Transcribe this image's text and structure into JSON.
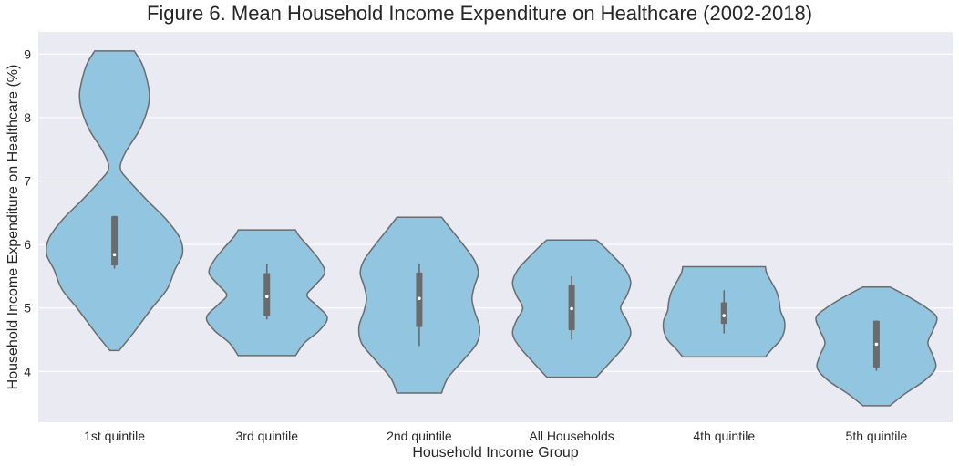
{
  "chart_data": {
    "type": "violin",
    "title": "Figure 6. Mean Household Income Expenditure on Healthcare (2002-2018)",
    "xlabel": "Household Income Group",
    "ylabel": "Household Income Expenditure on Healthcare (%)",
    "ylim": [
      3.2,
      9.35
    ],
    "yticks": [
      4,
      5,
      6,
      7,
      8,
      9
    ],
    "grid": true,
    "categories": [
      "1st quintile",
      "3rd quintile",
      "2nd quintile",
      "All Households",
      "4th quintile",
      "5th quintile"
    ],
    "series": [
      {
        "category": "1st quintile",
        "min": 5.62,
        "q1": 5.67,
        "median": 5.84,
        "q3": 6.45,
        "max": 6.45,
        "density": [
          [
            4.33,
            0.44
          ],
          [
            4.6,
            0.33
          ],
          [
            5.0,
            0.18
          ],
          [
            5.3,
            0.06
          ],
          [
            5.6,
            0.0
          ],
          [
            5.85,
            -0.06
          ],
          [
            6.1,
            -0.04
          ],
          [
            6.4,
            0.07
          ],
          [
            6.7,
            0.22
          ],
          [
            7.0,
            0.36
          ],
          [
            7.2,
            0.43
          ],
          [
            7.45,
            0.39
          ],
          [
            7.8,
            0.28
          ],
          [
            8.1,
            0.22
          ],
          [
            8.35,
            0.2
          ],
          [
            8.6,
            0.22
          ],
          [
            8.85,
            0.26
          ],
          [
            9.05,
            0.32
          ]
        ]
      },
      {
        "category": "3rd quintile",
        "min": 4.82,
        "q1": 4.87,
        "median": 5.18,
        "q3": 5.55,
        "max": 5.7,
        "density": [
          [
            4.25,
            0.25
          ],
          [
            4.45,
            0.18
          ],
          [
            4.65,
            0.06
          ],
          [
            4.85,
            0.0
          ],
          [
            5.05,
            0.09
          ],
          [
            5.2,
            0.16
          ],
          [
            5.35,
            0.1
          ],
          [
            5.55,
            0.02
          ],
          [
            5.75,
            0.06
          ],
          [
            5.95,
            0.14
          ],
          [
            6.13,
            0.22
          ],
          [
            6.23,
            0.25
          ]
        ]
      },
      {
        "category": "2nd quintile",
        "min": 4.4,
        "q1": 4.7,
        "median": 5.15,
        "q3": 5.56,
        "max": 5.7,
        "density": [
          [
            3.66,
            0.3
          ],
          [
            3.9,
            0.25
          ],
          [
            4.2,
            0.12
          ],
          [
            4.45,
            0.02
          ],
          [
            4.7,
            0.0
          ],
          [
            4.95,
            0.04
          ],
          [
            5.15,
            0.06
          ],
          [
            5.35,
            0.04
          ],
          [
            5.55,
            0.01
          ],
          [
            5.75,
            0.04
          ],
          [
            6.0,
            0.13
          ],
          [
            6.25,
            0.23
          ],
          [
            6.43,
            0.3
          ]
        ]
      },
      {
        "category": "All Households",
        "min": 4.5,
        "q1": 4.65,
        "median": 4.99,
        "q3": 5.37,
        "max": 5.5,
        "density": [
          [
            3.91,
            0.28
          ],
          [
            4.15,
            0.17
          ],
          [
            4.4,
            0.06
          ],
          [
            4.6,
            0.01
          ],
          [
            4.8,
            0.04
          ],
          [
            5.0,
            0.09
          ],
          [
            5.2,
            0.04
          ],
          [
            5.4,
            0.01
          ],
          [
            5.6,
            0.05
          ],
          [
            5.8,
            0.14
          ],
          [
            6.0,
            0.24
          ],
          [
            6.07,
            0.28
          ]
        ]
      },
      {
        "category": "4th quintile",
        "min": 4.6,
        "q1": 4.75,
        "median": 4.88,
        "q3": 5.09,
        "max": 5.28,
        "density": [
          [
            4.23,
            0.15
          ],
          [
            4.35,
            0.1
          ],
          [
            4.5,
            0.03
          ],
          [
            4.65,
            0.0
          ],
          [
            4.8,
            0.0
          ],
          [
            4.95,
            0.03
          ],
          [
            5.1,
            0.04
          ],
          [
            5.25,
            0.06
          ],
          [
            5.4,
            0.1
          ],
          [
            5.55,
            0.14
          ],
          [
            5.65,
            0.15
          ]
        ]
      },
      {
        "category": "5th quintile",
        "min": 4.01,
        "q1": 4.06,
        "median": 4.43,
        "q3": 4.8,
        "max": 4.8,
        "density": [
          [
            3.46,
            0.37
          ],
          [
            3.65,
            0.25
          ],
          [
            3.85,
            0.1
          ],
          [
            4.05,
            0.01
          ],
          [
            4.25,
            0.03
          ],
          [
            4.45,
            0.07
          ],
          [
            4.65,
            0.03
          ],
          [
            4.85,
            0.0
          ],
          [
            5.0,
            0.08
          ],
          [
            5.15,
            0.2
          ],
          [
            5.3,
            0.34
          ],
          [
            5.33,
            0.37
          ]
        ]
      }
    ],
    "colors": {
      "violin_fill": "#92c6e0",
      "violin_stroke": "#6b6b6b",
      "box": "#6b6b6b",
      "median": "#ffffff",
      "plot_bg": "#eaeaf2",
      "grid": "#ffffff"
    }
  }
}
